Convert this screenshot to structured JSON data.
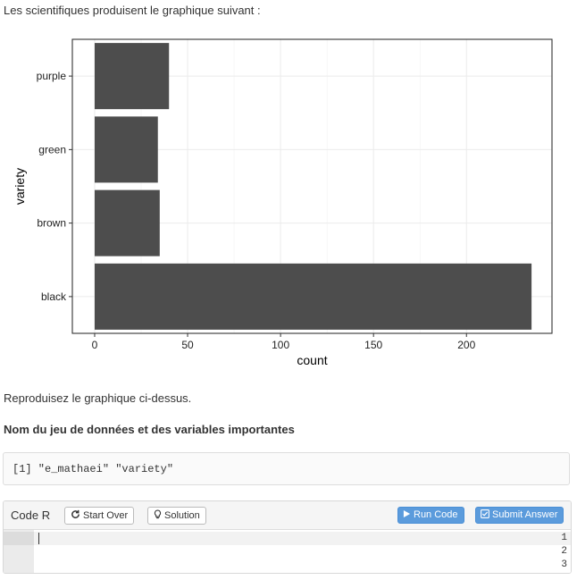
{
  "intro_text": "Les scientifiques produisent le graphique suivant :",
  "chart_data": {
    "type": "bar",
    "orientation": "horizontal",
    "categories": [
      "purple",
      "green",
      "brown",
      "black"
    ],
    "values": [
      40,
      34,
      35,
      235
    ],
    "xlabel": "count",
    "ylabel": "variety",
    "xticks": [
      0,
      50,
      100,
      150,
      200
    ],
    "xlim": [
      -12,
      246
    ],
    "grid": true,
    "bar_color": "#4d4d4d"
  },
  "reproduce_text": "Reproduisez le graphique ci-dessus.",
  "section_heading": "Nom du jeu de données et des variables importantes",
  "output_text": "[1] \"e_mathaei\" \"variety\"",
  "exercise": {
    "title": "Code R",
    "start_over_label": "Start Over",
    "solution_label": "Solution",
    "run_code_label": "Run Code",
    "submit_label": "Submit Answer",
    "line_numbers": [
      "1",
      "2",
      "3"
    ]
  },
  "colors": {
    "accent": "#5b9bdc",
    "bar": "#4d4d4d"
  }
}
